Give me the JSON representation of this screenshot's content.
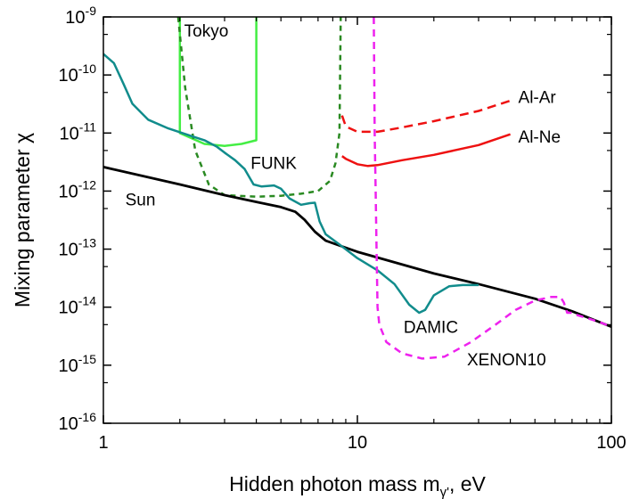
{
  "chart_data": {
    "type": "line",
    "xscale": "log",
    "yscale": "log",
    "xlim": [
      1,
      100
    ],
    "ylim": [
      1e-16,
      1e-09
    ],
    "xlabel": "Hidden photon mass m",
    "xlabel_sub": "γ'",
    "xlabel_unit": ", eV",
    "ylabel": "Mixing parameter χ",
    "x_ticks": [
      {
        "value": 1,
        "label": "1"
      },
      {
        "value": 10,
        "label": "10"
      },
      {
        "value": 100,
        "label": "100"
      }
    ],
    "y_ticks": [
      {
        "value": 1e-16,
        "base": "10",
        "exp": "-16"
      },
      {
        "value": 1e-15,
        "base": "10",
        "exp": "-15"
      },
      {
        "value": 1e-14,
        "base": "10",
        "exp": "-14"
      },
      {
        "value": 1e-13,
        "base": "10",
        "exp": "-13"
      },
      {
        "value": 1e-12,
        "base": "10",
        "exp": "-12"
      },
      {
        "value": 1e-11,
        "base": "10",
        "exp": "-11"
      },
      {
        "value": 1e-10,
        "base": "10",
        "exp": "-10"
      },
      {
        "value": 1e-09,
        "base": "10",
        "exp": "-9"
      }
    ],
    "series": [
      {
        "id": "tokyo",
        "color": "#44ee44",
        "dash": "solid",
        "width": 2.5,
        "points": [
          [
            2.0,
            1e-09
          ],
          [
            2.0,
            1e-11
          ],
          [
            2.5,
            6.5e-12
          ],
          [
            3.0,
            6e-12
          ],
          [
            3.5,
            6.5e-12
          ],
          [
            4.0,
            7.5e-12
          ],
          [
            4.0,
            1e-09
          ]
        ]
      },
      {
        "id": "funk",
        "color": "#2a8a22",
        "dash": "6,5",
        "width": 2.5,
        "points": [
          [
            1.97,
            1e-09
          ],
          [
            2.1,
            6e-11
          ],
          [
            2.3,
            5e-12
          ],
          [
            2.6,
            1.3e-12
          ],
          [
            3.0,
            8.5e-13
          ],
          [
            4.0,
            8e-13
          ],
          [
            5.0,
            8.3e-13
          ],
          [
            6.0,
            9e-13
          ],
          [
            7.0,
            1e-12
          ],
          [
            7.8,
            1.5e-12
          ],
          [
            8.2,
            3e-12
          ],
          [
            8.5,
            1e-11
          ],
          [
            8.6,
            1e-09
          ]
        ]
      },
      {
        "id": "sun",
        "color": "#000000",
        "dash": "solid",
        "width": 2.8,
        "points": [
          [
            1,
            2.6e-12
          ],
          [
            2,
            1.3e-12
          ],
          [
            3,
            8.5e-13
          ],
          [
            4,
            6.5e-13
          ],
          [
            5,
            5.3e-13
          ],
          [
            5.7,
            4.4e-13
          ],
          [
            6.2,
            3.2e-13
          ],
          [
            6.8,
            2e-13
          ],
          [
            7.5,
            1.4e-13
          ],
          [
            10,
            9e-14
          ],
          [
            20,
            3.8e-14
          ],
          [
            30,
            2.5e-14
          ],
          [
            50,
            1.4e-14
          ],
          [
            70,
            8.5e-15
          ],
          [
            100,
            4.6e-15
          ]
        ]
      },
      {
        "id": "sun-extra",
        "color": "#000000",
        "dash": "solid",
        "width": 2.8,
        "points": [
          [
            1,
            2.6e-12
          ],
          [
            1,
            2.6e-12
          ]
        ]
      },
      {
        "id": "damic",
        "color": "#118c8c",
        "dash": "solid",
        "width": 2.5,
        "points": [
          [
            1.0,
            2.3e-10
          ],
          [
            1.1,
            1.6e-10
          ],
          [
            1.2,
            7e-11
          ],
          [
            1.3,
            3.2e-11
          ],
          [
            1.5,
            1.7e-11
          ],
          [
            1.8,
            1.2e-11
          ],
          [
            2.2,
            9e-12
          ],
          [
            2.5,
            7.5e-12
          ],
          [
            2.8,
            5.8e-12
          ],
          [
            3.0,
            4.6e-12
          ],
          [
            3.3,
            3.4e-12
          ],
          [
            3.6,
            2.4e-12
          ],
          [
            3.9,
            1.3e-12
          ],
          [
            4.2,
            1.2e-12
          ],
          [
            4.7,
            1.25e-12
          ],
          [
            5.0,
            1.1e-12
          ],
          [
            5.4,
            7.5e-13
          ],
          [
            6.0,
            5.8e-13
          ],
          [
            6.5,
            6.2e-13
          ],
          [
            6.8,
            6.3e-13
          ],
          [
            7.1,
            3e-13
          ],
          [
            7.5,
            1.8e-13
          ],
          [
            8.5,
            1.2e-13
          ],
          [
            10,
            7e-14
          ],
          [
            12,
            4.3e-14
          ],
          [
            14,
            2.5e-14
          ],
          [
            16,
            1.1e-14
          ],
          [
            17.5,
            8e-15
          ],
          [
            18.5,
            9e-15
          ],
          [
            20,
            1.6e-14
          ],
          [
            23,
            2.3e-14
          ],
          [
            26,
            2.4e-14
          ],
          [
            30,
            2.4e-14
          ]
        ]
      },
      {
        "id": "xenon10",
        "color": "#ee22ee",
        "dash": "8,6",
        "width": 2.5,
        "points": [
          [
            11.6,
            1e-09
          ],
          [
            11.7,
            1e-11
          ],
          [
            11.8,
            1e-12
          ],
          [
            11.9,
            1e-13
          ],
          [
            12.0,
            1e-14
          ],
          [
            12.2,
            5e-15
          ],
          [
            13,
            2.5e-15
          ],
          [
            15,
            1.6e-15
          ],
          [
            18,
            1.3e-15
          ],
          [
            22,
            1.4e-15
          ],
          [
            28,
            2.5e-15
          ],
          [
            35,
            5e-15
          ],
          [
            42,
            9e-15
          ],
          [
            50,
            1.3e-14
          ],
          [
            58,
            1.5e-14
          ],
          [
            63,
            1.5e-14
          ],
          [
            65,
            1.2e-14
          ],
          [
            67,
            8e-15
          ],
          [
            70,
            8e-15
          ],
          [
            72,
            7.5e-15
          ],
          [
            80,
            6.5e-15
          ],
          [
            90,
            5.5e-15
          ],
          [
            100,
            4.6e-15
          ]
        ]
      },
      {
        "id": "al-ar",
        "color": "#ee1111",
        "dash": "10,6",
        "width": 2.5,
        "points": [
          [
            8.7,
            2e-11
          ],
          [
            9.0,
            1.3e-11
          ],
          [
            10,
            1.05e-11
          ],
          [
            12,
            1.05e-11
          ],
          [
            15,
            1.25e-11
          ],
          [
            20,
            1.6e-11
          ],
          [
            30,
            2.4e-11
          ],
          [
            40,
            3.6e-11
          ]
        ]
      },
      {
        "id": "al-ne",
        "color": "#ee1111",
        "dash": "solid",
        "width": 2.5,
        "points": [
          [
            8.7,
            4e-12
          ],
          [
            9.0,
            3.6e-12
          ],
          [
            10,
            2.9e-12
          ],
          [
            11,
            2.7e-12
          ],
          [
            12,
            2.8e-12
          ],
          [
            15,
            3.4e-12
          ],
          [
            20,
            4.2e-12
          ],
          [
            30,
            6.2e-12
          ],
          [
            40,
            9.5e-12
          ]
        ]
      }
    ],
    "annotations": [
      {
        "id": "tokyo",
        "text": "Tokyo",
        "x": 2.08,
        "y": 4.6e-10
      },
      {
        "id": "funk",
        "text": "FUNK",
        "x": 3.8,
        "y": 2.4e-12
      },
      {
        "id": "sun",
        "text": "Sun",
        "x": 1.22,
        "y": 5.7e-13
      },
      {
        "id": "al-ar",
        "text": "Al-Ar",
        "x": 43,
        "y": 3.3e-11
      },
      {
        "id": "al-ne",
        "text": "Al-Ne",
        "x": 43,
        "y": 6.8e-12
      },
      {
        "id": "damic",
        "text": "DAMIC",
        "x": 15.2,
        "y": 3.6e-15
      },
      {
        "id": "xenon10",
        "text": "XENON10",
        "x": 27,
        "y": 1e-15
      }
    ]
  }
}
